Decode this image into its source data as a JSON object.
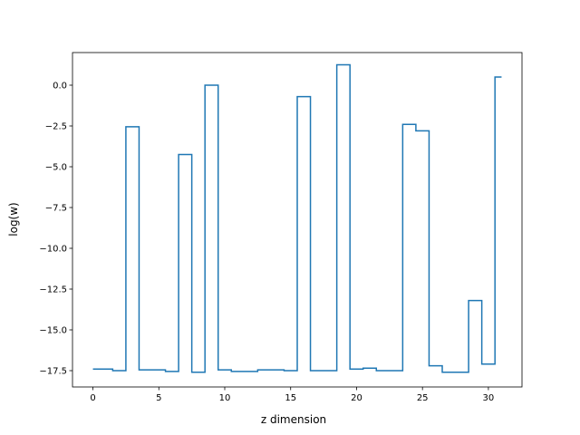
{
  "chart_data": {
    "type": "line",
    "drawstyle": "steps-mid",
    "xlabel": "z dimension",
    "ylabel": "log(w)",
    "xlim": [
      -1.55,
      32.55
    ],
    "ylim": [
      -18.5,
      2.0
    ],
    "grid": false,
    "legend": "none",
    "xticks": [
      0,
      5,
      10,
      15,
      20,
      25,
      30
    ],
    "xtick_labels": [
      "0",
      "5",
      "10",
      "15",
      "20",
      "25",
      "30"
    ],
    "yticks": [
      0.0,
      -2.5,
      -5.0,
      -7.5,
      -10.0,
      -12.5,
      -15.0,
      -17.5
    ],
    "ytick_labels": [
      "0.0",
      "−2.5",
      "−5.0",
      "−7.5",
      "−10.0",
      "−12.5",
      "−15.0",
      "−17.5"
    ],
    "series": [
      {
        "color": "#1f77b4",
        "x": [
          0,
          1,
          2,
          3,
          4,
          5,
          6,
          7,
          8,
          9,
          10,
          11,
          12,
          13,
          14,
          15,
          16,
          17,
          18,
          19,
          20,
          21,
          22,
          23,
          24,
          25,
          26,
          27,
          28,
          29,
          30,
          31
        ],
        "values": [
          -17.4,
          -17.4,
          -17.5,
          -2.55,
          -17.45,
          -17.45,
          -17.55,
          -4.25,
          -17.6,
          0.0,
          -17.45,
          -17.55,
          -17.55,
          -17.45,
          -17.45,
          -17.5,
          -0.7,
          -17.5,
          -17.5,
          1.25,
          -17.4,
          -17.35,
          -17.5,
          -17.5,
          -2.4,
          -2.8,
          -17.2,
          -17.6,
          -17.6,
          -13.2,
          -17.1,
          0.5
        ]
      }
    ]
  }
}
